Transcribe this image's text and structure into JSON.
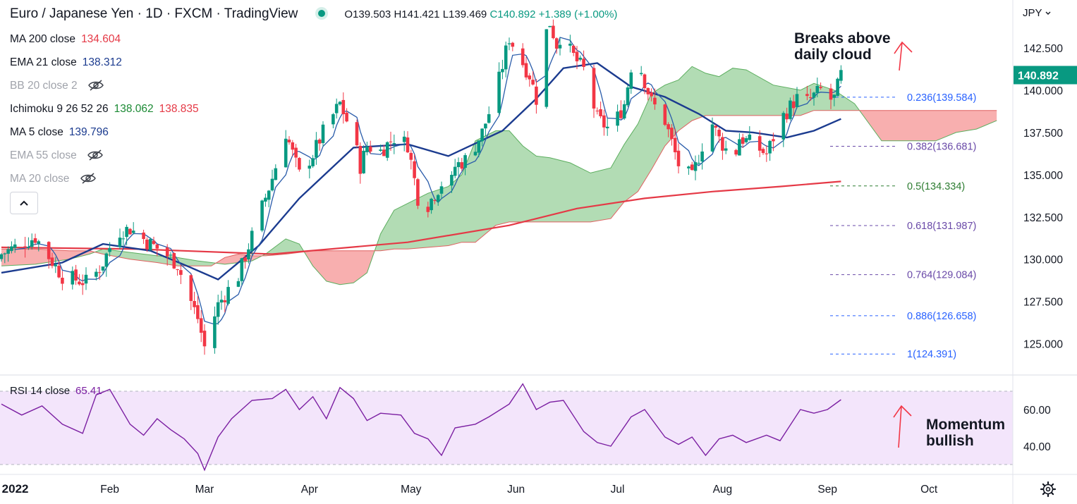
{
  "header": {
    "symbol_title": "Euro / Japanese Yen · 1D · FXCM · TradingView",
    "open": "O139.503",
    "high": "H141.421",
    "low": "L139.469",
    "close": "C140.892",
    "change": "+1.389 (+1.00%)"
  },
  "currency": "JPY",
  "indicators": [
    {
      "label": "MA 200 close",
      "value": "134.604",
      "value2": "",
      "color": "#e53946",
      "color2": "",
      "hidden": false
    },
    {
      "label": "EMA 21 close",
      "value": "138.312",
      "value2": "",
      "color": "#1b3b8f",
      "color2": "",
      "hidden": false
    },
    {
      "label": "BB 20 close 2",
      "value": "",
      "value2": "",
      "color": "",
      "color2": "",
      "hidden": true
    },
    {
      "label": "Ichimoku 9 26 52 26",
      "value": "138.062",
      "value2": "138.835",
      "color": "#1b8a34",
      "color2": "#e53946",
      "hidden": false
    },
    {
      "label": "MA 5 close",
      "value": "139.796",
      "value2": "",
      "color": "#1b3b8f",
      "color2": "",
      "hidden": false
    },
    {
      "label": "EMA 55 close",
      "value": "",
      "value2": "",
      "color": "",
      "color2": "",
      "hidden": true
    },
    {
      "label": "MA 20 close",
      "value": "",
      "value2": "",
      "color": "",
      "color2": "",
      "hidden": true
    }
  ],
  "rsi_legend": {
    "label": "RSI 14 close",
    "value": "65.41"
  },
  "annotations": {
    "cloud_line1": "Breaks above",
    "cloud_line2": "daily cloud",
    "momentum_line1": "Momentum",
    "momentum_line2": "bullish"
  },
  "collapse_icon": "chevron-up-icon",
  "colors": {
    "up": "#089981",
    "down": "#f23645",
    "ma200": "#e53946",
    "ema21": "#1b3b8f",
    "ma5": "#2a5caa",
    "cloud_bull": "#a5d6a7",
    "cloud_bear": "#f7a1a1",
    "rsi_line": "#7b1fa2",
    "rsi_fill": "#f3e5fb",
    "fib_purple": "#6a4aa8",
    "fib_blue": "#2962ff",
    "fib_green": "#2e7d32",
    "accent_red": "#f23645"
  },
  "chart_data": {
    "type": "candlestick",
    "title": "Euro / Japanese Yen · 1D · FXCM",
    "price_axis": {
      "ticks": [
        "142.500",
        "140.000",
        "137.500",
        "135.000",
        "132.500",
        "130.000",
        "127.500",
        "125.000"
      ],
      "tick_values": [
        142.5,
        140.0,
        137.5,
        135.0,
        132.5,
        130.0,
        127.5,
        125.0
      ],
      "range": [
        123.0,
        145.0
      ],
      "current_price_label": "140.892",
      "current_price": 140.892
    },
    "time_axis": {
      "labels": [
        "2022",
        "Feb",
        "Mar",
        "Apr",
        "May",
        "Jun",
        "Jul",
        "Aug",
        "Sep",
        "Oct"
      ],
      "label_days": [
        2,
        32,
        60,
        91,
        121,
        152,
        182,
        213,
        244,
        274
      ],
      "visible_range_days": [
        0,
        294
      ]
    },
    "fibonacci": [
      {
        "ratio": "0.236",
        "label": "0.236(139.584)",
        "price": 139.584,
        "color": "#2962ff"
      },
      {
        "ratio": "0.382",
        "label": "0.382(136.681)",
        "price": 136.681,
        "color": "#6a4aa8"
      },
      {
        "ratio": "0.5",
        "label": "0.5(134.334)",
        "price": 134.334,
        "color": "#2e7d32"
      },
      {
        "ratio": "0.618",
        "label": "0.618(131.987)",
        "price": 131.987,
        "color": "#6a4aa8"
      },
      {
        "ratio": "0.764",
        "label": "0.764(129.084)",
        "price": 129.084,
        "color": "#6a4aa8"
      },
      {
        "ratio": "0.886",
        "label": "0.886(126.658)",
        "price": 126.658,
        "color": "#2962ff"
      },
      {
        "ratio": "1",
        "label": "1(124.391)",
        "price": 124.391,
        "color": "#2962ff"
      }
    ],
    "price_path": {
      "day": [
        0,
        10,
        18,
        26,
        30,
        34,
        38,
        44,
        48,
        52,
        55,
        58,
        60,
        64,
        68,
        70,
        72,
        76,
        80,
        84,
        88,
        92,
        95,
        100,
        104,
        106,
        108,
        112,
        116,
        120,
        124,
        130,
        132,
        134,
        138,
        142,
        146,
        150,
        154,
        156,
        158,
        160,
        162,
        164,
        166,
        168,
        170,
        172,
        176,
        180,
        184,
        186,
        188,
        192,
        196,
        200,
        204,
        208,
        210,
        212,
        214,
        216,
        218,
        222,
        226,
        230,
        234,
        236,
        238,
        242,
        244,
        246,
        248
      ],
      "close": [
        130.3,
        131.3,
        129.0,
        128.6,
        129.8,
        131.6,
        131.8,
        130.9,
        130.4,
        129.7,
        128.0,
        126.5,
        124.8,
        127.3,
        128.5,
        129.0,
        130.2,
        132.5,
        134.8,
        137.5,
        135.0,
        136.2,
        137.5,
        139.2,
        137.2,
        135.5,
        136.7,
        136.4,
        137.2,
        136.8,
        132.6,
        134.5,
        133.7,
        135.5,
        136.0,
        137.5,
        139.8,
        143.1,
        141.6,
        140.9,
        139.5,
        142.9,
        144.0,
        142.7,
        143.6,
        142.3,
        141.7,
        141.2,
        138.3,
        137.6,
        139.2,
        141.4,
        141.8,
        139.3,
        138.2,
        135.6,
        134.8,
        137.4,
        138.0,
        137.1,
        136.5,
        135.6,
        137.2,
        136.8,
        136.2,
        138.2,
        139.3,
        139.7,
        139.3,
        140.0,
        139.4,
        139.5,
        140.9
      ]
    },
    "ma200": {
      "day": [
        0,
        40,
        80,
        120,
        150,
        170,
        190,
        210,
        230,
        248
      ],
      "value": [
        130.7,
        130.6,
        130.3,
        131.0,
        132.0,
        133.0,
        133.6,
        134.0,
        134.3,
        134.6
      ]
    },
    "ema21": {
      "day": [
        0,
        18,
        30,
        44,
        56,
        64,
        76,
        88,
        104,
        120,
        132,
        148,
        158,
        166,
        176,
        186,
        196,
        206,
        214,
        222,
        232,
        240,
        248
      ],
      "value": [
        129.2,
        129.8,
        130.9,
        130.5,
        129.5,
        128.8,
        130.8,
        133.6,
        136.6,
        136.8,
        136.1,
        137.6,
        139.5,
        141.3,
        141.6,
        140.2,
        139.6,
        138.6,
        137.6,
        137.5,
        137.2,
        137.6,
        138.3
      ]
    },
    "ichimoku_cloud": {
      "day": [
        0,
        10,
        20,
        26,
        30,
        38,
        46,
        52,
        58,
        62,
        66,
        70,
        74,
        78,
        84,
        88,
        92,
        96,
        100,
        104,
        108,
        112,
        116,
        120,
        126,
        132,
        136,
        140,
        146,
        150,
        154,
        158,
        162,
        168,
        174,
        180,
        184,
        188,
        192,
        196,
        200,
        204,
        208,
        212,
        216,
        220,
        228,
        236,
        240,
        246,
        252,
        260,
        268,
        276,
        282,
        288,
        294
      ],
      "span_a": [
        129.6,
        129.7,
        130.0,
        130.3,
        130.6,
        130.4,
        130.2,
        130.1,
        129.9,
        129.8,
        129.7,
        129.8,
        129.9,
        130.3,
        131.2,
        130.9,
        129.6,
        128.7,
        128.5,
        128.6,
        129.2,
        131.5,
        132.9,
        133.3,
        133.9,
        134.3,
        135.0,
        137.0,
        137.6,
        137.6,
        136.7,
        136.1,
        136.0,
        135.7,
        135.1,
        135.4,
        136.8,
        138.0,
        139.8,
        140.3,
        140.6,
        141.4,
        141.0,
        140.8,
        141.3,
        141.2,
        140.3,
        140.0,
        140.4,
        140.0,
        139.2,
        137.0,
        137.0,
        137.0,
        137.5,
        137.7,
        138.2
      ],
      "span_b": [
        130.6,
        130.6,
        130.5,
        130.5,
        130.3,
        130.0,
        129.8,
        129.6,
        129.6,
        129.6,
        130.1,
        130.3,
        130.2,
        130.2,
        130.3,
        130.4,
        130.5,
        130.5,
        130.5,
        130.5,
        130.5,
        130.5,
        130.6,
        130.6,
        130.7,
        130.8,
        131.0,
        131.0,
        132.0,
        132.2,
        132.2,
        132.2,
        132.2,
        132.2,
        132.2,
        132.4,
        133.4,
        134.0,
        135.3,
        136.7,
        137.6,
        138.2,
        138.5,
        138.5,
        138.5,
        138.5,
        138.5,
        138.5,
        138.8,
        138.8,
        138.8,
        138.8,
        138.8,
        138.8,
        138.8,
        138.8,
        138.8
      ]
    },
    "rsi": {
      "axis_ticks": [
        "60.00",
        "40.00"
      ],
      "axis_values": [
        60,
        40
      ],
      "range": [
        25,
        75
      ],
      "bands": [
        70,
        30
      ],
      "day": [
        0,
        6,
        12,
        18,
        24,
        28,
        32,
        38,
        42,
        46,
        50,
        54,
        58,
        60,
        64,
        68,
        74,
        80,
        84,
        88,
        92,
        96,
        100,
        104,
        108,
        112,
        118,
        122,
        126,
        130,
        134,
        140,
        144,
        150,
        154,
        158,
        162,
        166,
        172,
        176,
        180,
        186,
        190,
        196,
        200,
        204,
        208,
        212,
        216,
        220,
        226,
        230,
        236,
        240,
        244,
        248
      ],
      "value": [
        63,
        57,
        62,
        52,
        47,
        68,
        71,
        52,
        46,
        55,
        49,
        44,
        36,
        27,
        45,
        55,
        65,
        66,
        71,
        60,
        67,
        55,
        72,
        66,
        54,
        58,
        57,
        47,
        44,
        35,
        50,
        52,
        56,
        63,
        74,
        60,
        64,
        65,
        48,
        42,
        40,
        56,
        60,
        45,
        41,
        45,
        35,
        44,
        46,
        42,
        46,
        43,
        60,
        58,
        60,
        65.4
      ]
    }
  }
}
